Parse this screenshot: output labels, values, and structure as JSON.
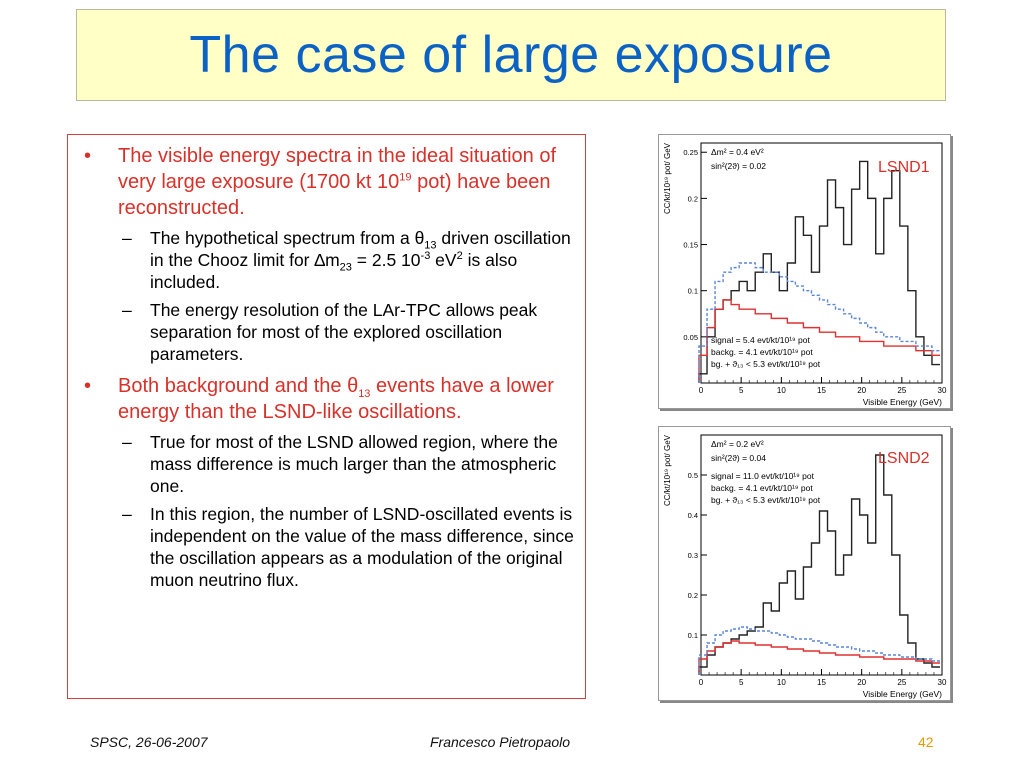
{
  "title": "The case of large exposure",
  "bullets": {
    "b1": {
      "marker": "•",
      "p1": "The visible energy spectra in the ideal situation of very large exposure (1700 kt 10",
      "sup": "19",
      "p2": " pot) have been reconstructed."
    },
    "b1a": {
      "marker": "–",
      "p1": "The hypothetical spectrum from a ",
      "theta": "θ",
      "sub13": "13",
      "p2": " driven oscillation in the Chooz limit for ",
      "delta": "∆m",
      "sub23": "23",
      "p3": " = 2.5 10",
      "sup_exp": "-3",
      "p4": " eV",
      "sup2": "2",
      "p5": " is also included."
    },
    "b1b": {
      "marker": "–",
      "text": "The energy resolution of the LAr-TPC allows peak separation for most of the explored oscillation parameters."
    },
    "b2": {
      "marker": "•",
      "p1": "Both background and the ",
      "theta": "θ",
      "sub13": "13",
      "p2": " events have a lower energy than the LSND-like oscillations."
    },
    "b2a": {
      "marker": "–",
      "text": "True for most of the LSND allowed region, where the mass difference is much larger than the atmospheric one."
    },
    "b2b": {
      "marker": "–",
      "text": "In this region, the number of LSND-oscillated events is independent on the value of the mass difference, since the oscillation appears as a modulation of the original muon neutrino flux."
    }
  },
  "footer": {
    "left": "SPSC, 26-06-2007",
    "center": "Francesco Pietropaolo",
    "page": "42"
  },
  "colors": {
    "title": "#0b62c4",
    "red_text": "#d8312a",
    "signal_line": "#222222",
    "background_line": "#e03030",
    "theta13_line": "#5a86d8"
  },
  "chart_data": [
    {
      "type": "line",
      "name": "LSND1",
      "label": "LSND1",
      "xlabel": "Visible Energy (GeV)",
      "ylabel": "CC/kt/10¹⁹ pot/ GeV",
      "xlim": [
        0,
        30
      ],
      "ylim": [
        0,
        0.26
      ],
      "xticks": [
        0,
        5,
        10,
        15,
        20,
        25,
        30
      ],
      "yticks": [
        0.05,
        0.1,
        0.15,
        0.2,
        0.25
      ],
      "params": [
        "Δm² = 0.4 eV²",
        "sin²(2ϑ) = 0.02"
      ],
      "stats": [
        "signal = 5.4 evt/kt/10¹⁹ pot",
        "backg. = 4.1 evt/kt/10¹⁹ pot",
        "bg. + ϑ₁₃ < 5.3 evt/kt/10¹⁹ pot"
      ],
      "x": [
        0.25,
        1.25,
        2.25,
        3.25,
        4.25,
        5.25,
        6.25,
        7.25,
        8.25,
        9.25,
        10.25,
        11.25,
        12.25,
        13.25,
        14.25,
        15.25,
        16.25,
        17.25,
        18.25,
        19.25,
        20.25,
        21.25,
        22.25,
        23.25,
        24.25,
        25.25,
        26.25,
        27.25,
        28.25,
        29.25
      ],
      "series": [
        {
          "name": "signal",
          "values": [
            0.01,
            0.05,
            0.08,
            0.09,
            0.1,
            0.11,
            0.1,
            0.12,
            0.14,
            0.12,
            0.1,
            0.13,
            0.18,
            0.16,
            0.12,
            0.17,
            0.22,
            0.19,
            0.15,
            0.21,
            0.24,
            0.2,
            0.14,
            0.2,
            0.23,
            0.17,
            0.1,
            0.05,
            0.03,
            0.02
          ]
        },
        {
          "name": "background",
          "values": [
            0.03,
            0.06,
            0.08,
            0.09,
            0.085,
            0.08,
            0.08,
            0.075,
            0.075,
            0.07,
            0.07,
            0.065,
            0.065,
            0.06,
            0.06,
            0.055,
            0.055,
            0.05,
            0.05,
            0.05,
            0.045,
            0.045,
            0.045,
            0.04,
            0.04,
            0.04,
            0.04,
            0.035,
            0.035,
            0.03
          ]
        },
        {
          "name": "background + theta13",
          "values": [
            0.04,
            0.08,
            0.11,
            0.12,
            0.125,
            0.13,
            0.13,
            0.125,
            0.12,
            0.12,
            0.115,
            0.11,
            0.105,
            0.1,
            0.095,
            0.09,
            0.085,
            0.08,
            0.075,
            0.07,
            0.065,
            0.06,
            0.055,
            0.05,
            0.05,
            0.045,
            0.045,
            0.04,
            0.04,
            0.035
          ]
        }
      ]
    },
    {
      "type": "line",
      "name": "LSND2",
      "label": "LSND2",
      "xlabel": "Visible Energy (GeV)",
      "ylabel": "CC/kt/10¹⁹ pot/ GeV",
      "xlim": [
        0,
        30
      ],
      "ylim": [
        0,
        0.6
      ],
      "xticks": [
        0,
        5,
        10,
        15,
        20,
        25,
        30
      ],
      "yticks": [
        0.1,
        0.2,
        0.3,
        0.4,
        0.5
      ],
      "params": [
        "Δm² = 0.2 eV²",
        "sin²(2ϑ) = 0.04"
      ],
      "stats": [
        "signal = 11.0 evt/kt/10¹⁹ pot",
        "backg. = 4.1 evt/kt/10¹⁹ pot",
        "bg. + ϑ₁₃ < 5.3 evt/kt/10¹⁹ pot"
      ],
      "x": [
        0.25,
        1.25,
        2.25,
        3.25,
        4.25,
        5.25,
        6.25,
        7.25,
        8.25,
        9.25,
        10.25,
        11.25,
        12.25,
        13.25,
        14.25,
        15.25,
        16.25,
        17.25,
        18.25,
        19.25,
        20.25,
        21.25,
        22.25,
        23.25,
        24.25,
        25.25,
        26.25,
        27.25,
        28.25,
        29.25
      ],
      "series": [
        {
          "name": "signal",
          "values": [
            0.02,
            0.05,
            0.07,
            0.08,
            0.09,
            0.1,
            0.11,
            0.12,
            0.18,
            0.16,
            0.23,
            0.26,
            0.19,
            0.27,
            0.33,
            0.41,
            0.36,
            0.25,
            0.3,
            0.44,
            0.4,
            0.33,
            0.55,
            0.45,
            0.3,
            0.15,
            0.08,
            0.04,
            0.03,
            0.02
          ]
        },
        {
          "name": "background",
          "values": [
            0.04,
            0.06,
            0.07,
            0.08,
            0.085,
            0.08,
            0.08,
            0.075,
            0.075,
            0.07,
            0.07,
            0.065,
            0.065,
            0.06,
            0.06,
            0.055,
            0.055,
            0.05,
            0.05,
            0.05,
            0.045,
            0.045,
            0.045,
            0.04,
            0.04,
            0.04,
            0.04,
            0.035,
            0.035,
            0.03
          ]
        },
        {
          "name": "background + theta13",
          "values": [
            0.05,
            0.08,
            0.1,
            0.11,
            0.115,
            0.12,
            0.115,
            0.11,
            0.11,
            0.105,
            0.1,
            0.095,
            0.09,
            0.09,
            0.085,
            0.08,
            0.075,
            0.07,
            0.07,
            0.065,
            0.06,
            0.06,
            0.055,
            0.05,
            0.05,
            0.045,
            0.045,
            0.04,
            0.04,
            0.035
          ]
        }
      ]
    }
  ]
}
